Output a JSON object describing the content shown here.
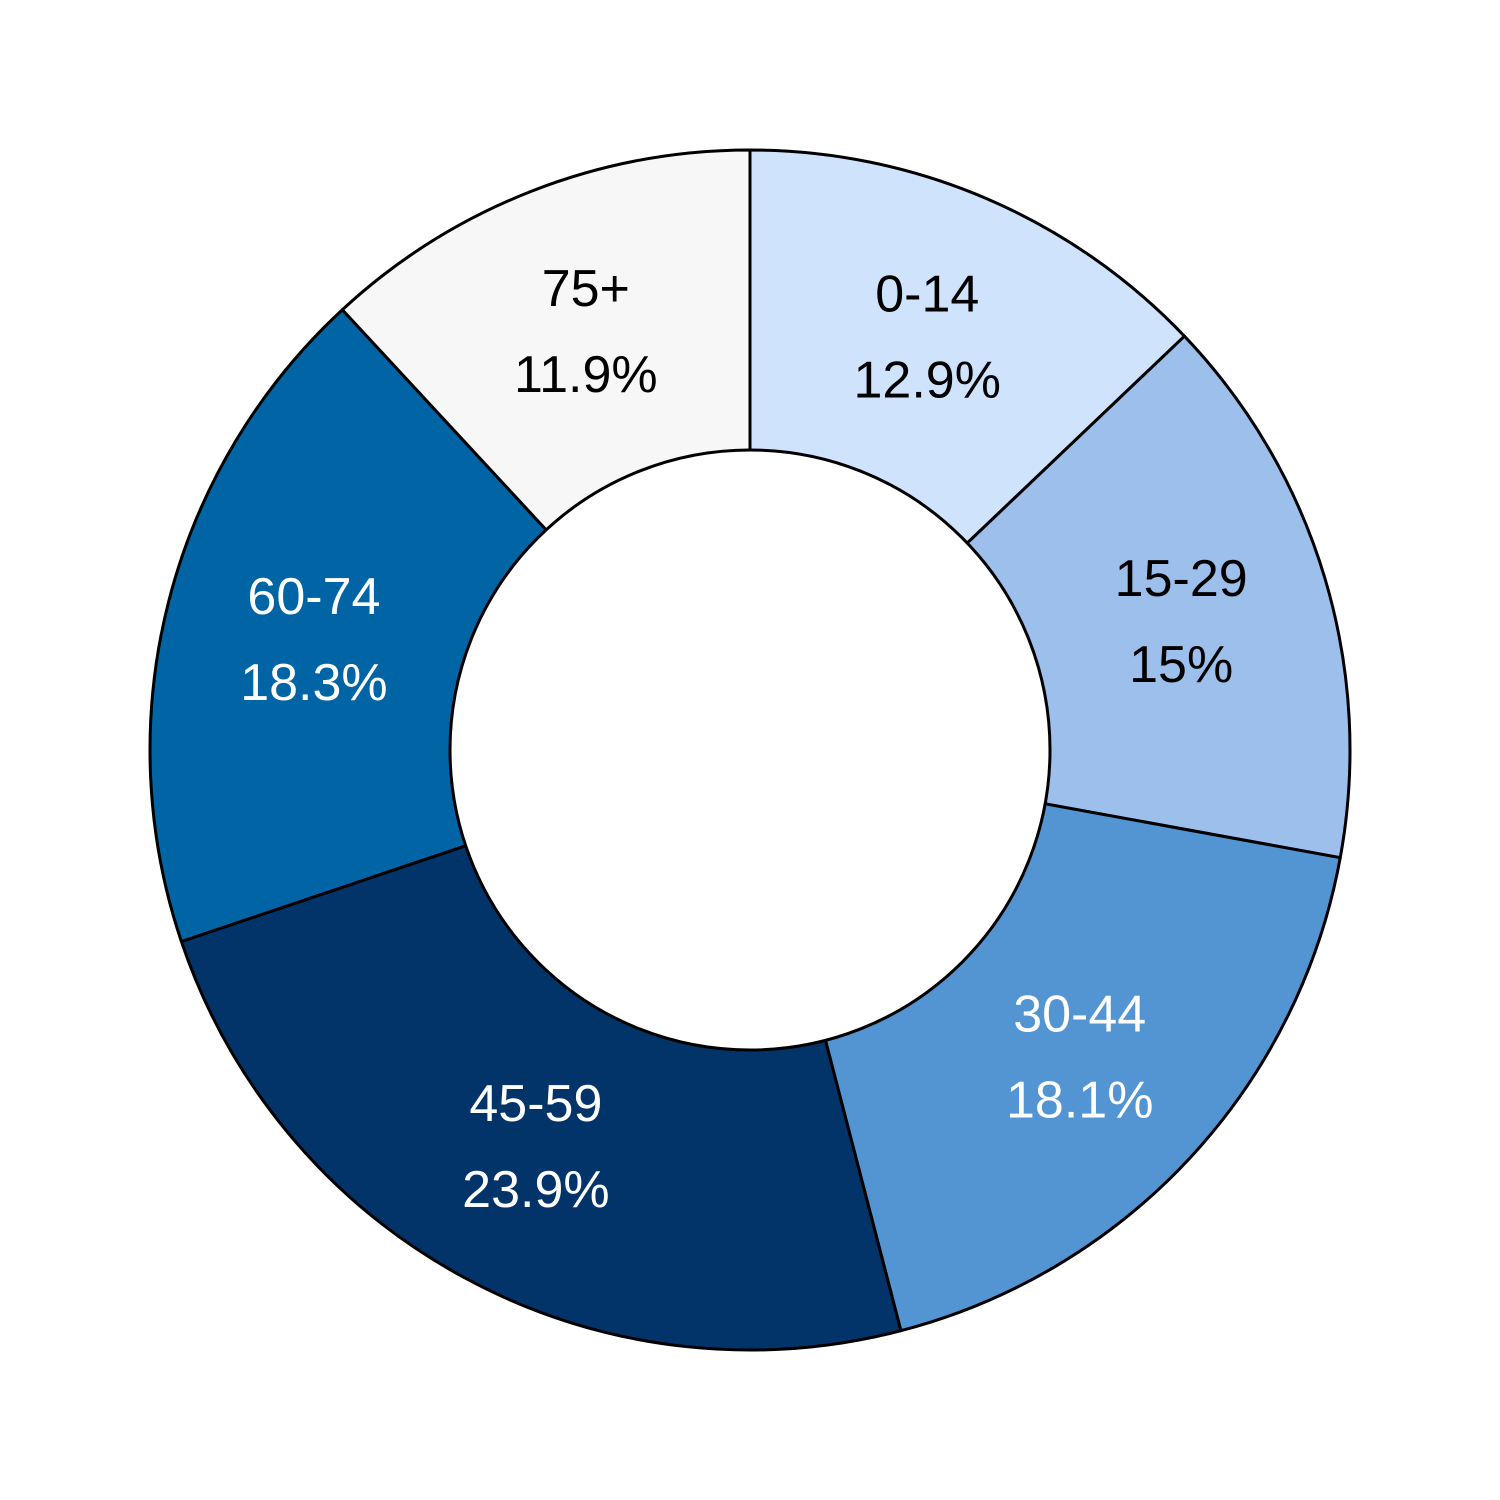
{
  "chart_data": {
    "type": "pie",
    "variant": "donut",
    "slices": [
      {
        "label": "0-14",
        "value": 12.9,
        "value_label": "12.9%",
        "color": "#D0E3FD",
        "text_color": "#000000"
      },
      {
        "label": "15-29",
        "value": 15.0,
        "value_label": "15%",
        "color": "#9CC0EB",
        "text_color": "#000000"
      },
      {
        "label": "30-44",
        "value": 18.1,
        "value_label": "18.1%",
        "color": "#5394D3",
        "text_color": "#FFFFFF"
      },
      {
        "label": "45-59",
        "value": 23.9,
        "value_label": "23.9%",
        "color": "#023469",
        "text_color": "#FFFFFF"
      },
      {
        "label": "60-74",
        "value": 18.3,
        "value_label": "18.3%",
        "color": "#0064A5",
        "text_color": "#FFFFFF"
      },
      {
        "label": "75+",
        "value": 11.9,
        "value_label": "11.9%",
        "color": "#F7F7F7",
        "text_color": "#000000"
      }
    ],
    "start_angle": "12 o'clock",
    "direction": "clockwise",
    "slice_border_color": "#000000",
    "hole_color": "#FFFFFF"
  }
}
